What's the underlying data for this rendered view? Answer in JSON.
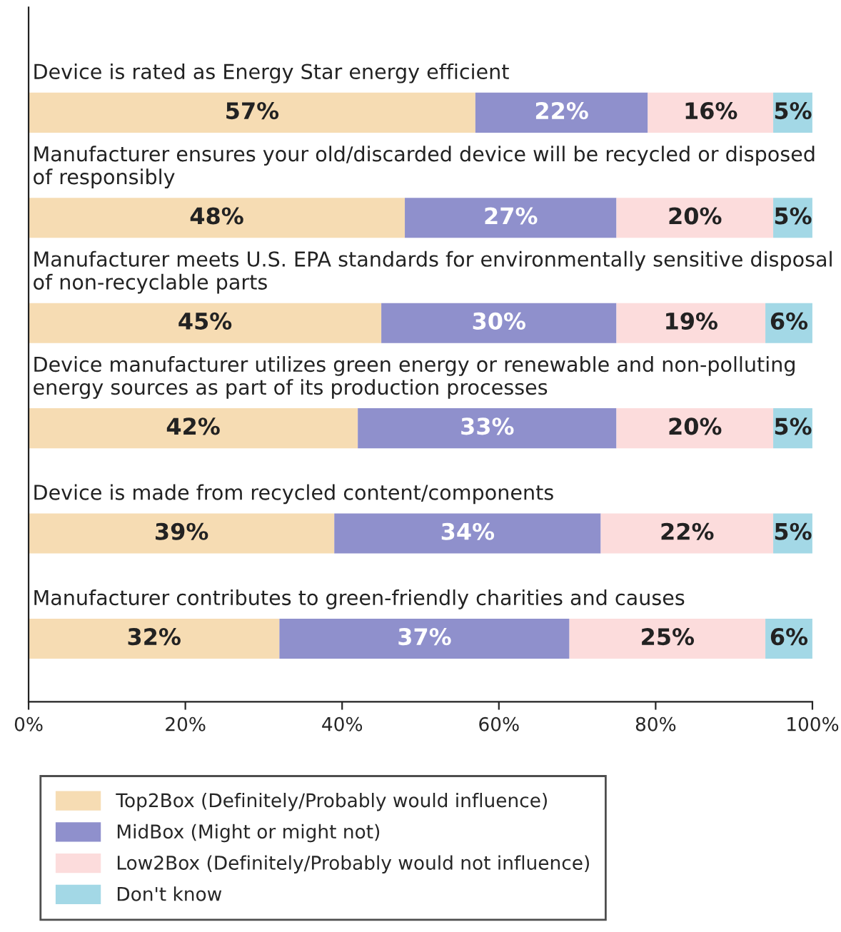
{
  "chart_data": {
    "type": "bar",
    "orientation": "horizontal",
    "stacked": true,
    "categories": [
      "Device is rated as Energy Star energy efficient",
      "Manufacturer ensures your old/discarded device will be recycled or disposed of responsibly",
      "Manufacturer meets U.S. EPA standards for environmentally sensitive disposal of non-recyclable parts",
      "Device manufacturer utilizes green energy or renewable and non-polluting energy sources as part of its production processes",
      "Device is made from recycled content/components",
      "Manufacturer contributes to green-friendly charities and causes"
    ],
    "series": [
      {
        "name": "Top2Box (Definitely/Probably would influence)",
        "color": "#f6dcb3",
        "values": [
          57,
          48,
          45,
          42,
          39,
          32
        ],
        "value_labels": [
          "57%",
          "48%",
          "45%",
          "42%",
          "39%",
          "32%"
        ]
      },
      {
        "name": "MidBox (Might or might not)",
        "color": "#8f90cc",
        "values": [
          22,
          27,
          30,
          33,
          34,
          37
        ],
        "value_labels": [
          "22%",
          "27%",
          "30%",
          "33%",
          "34%",
          "37%"
        ]
      },
      {
        "name": "Low2Box (Definitely/Probably would not influence)",
        "color": "#fcdcdc",
        "values": [
          16,
          20,
          19,
          20,
          22,
          25
        ],
        "value_labels": [
          "16%",
          "20%",
          "19%",
          "20%",
          "22%",
          "25%"
        ]
      },
      {
        "name": "Don't know",
        "color": "#a3d8e6",
        "values": [
          5,
          5,
          6,
          5,
          5,
          6
        ],
        "value_labels": [
          "5%",
          "5%",
          "6%",
          "5%",
          "5%",
          "6%"
        ]
      }
    ],
    "xlim": [
      0,
      100
    ],
    "xticks": [
      {
        "value": 0,
        "label": "0%"
      },
      {
        "value": 20,
        "label": "20%"
      },
      {
        "value": 40,
        "label": "40%"
      },
      {
        "value": 60,
        "label": "60%"
      },
      {
        "value": 80,
        "label": "80%"
      },
      {
        "value": 100,
        "label": "100%"
      }
    ],
    "grid": false,
    "legend": "bottom"
  }
}
